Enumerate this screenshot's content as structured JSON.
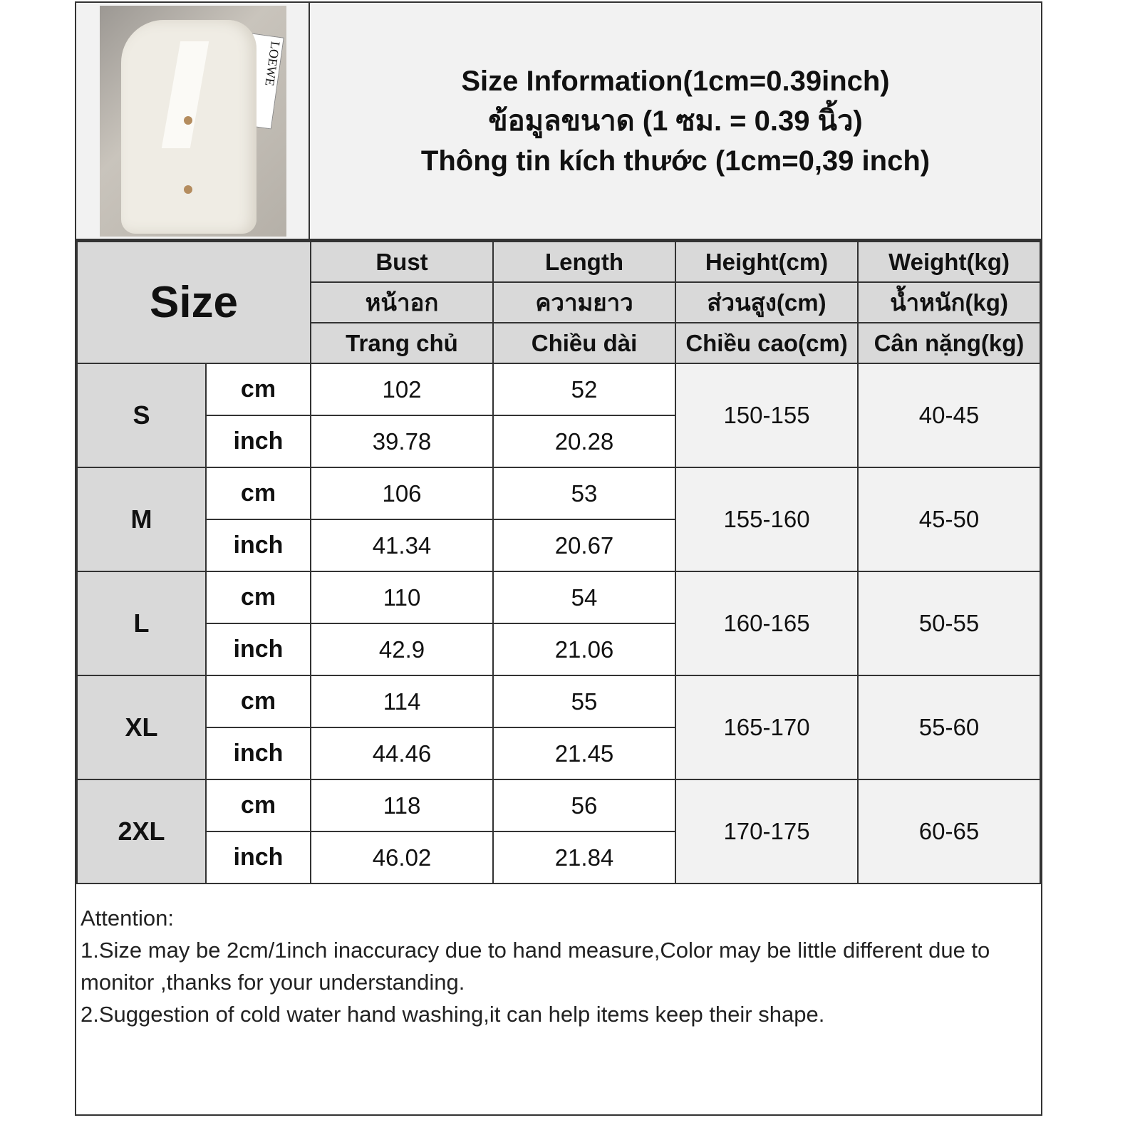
{
  "product_image": {
    "description_icon": "white-short-sleeve-blazer-photo",
    "box_logo": "LOEWE"
  },
  "title_lines": [
    "Size Information(1cm=0.39inch)",
    "ข้อมูลขนาด (1 ซม. = 0.39 นิ้ว)",
    "Thông tin kích thước (1cm=0,39 inch)"
  ],
  "size_header": "Size",
  "column_headers": [
    [
      "Bust",
      "หน้าอก",
      "Trang chủ"
    ],
    [
      "Length",
      "ความยาว",
      "Chiều dài"
    ],
    [
      "Height(cm)",
      "ส่วนสูง(cm)",
      "Chiều cao(cm)"
    ],
    [
      "Weight(kg)",
      "น้ำหนัก(kg)",
      "Cân nặng(kg)"
    ]
  ],
  "units": [
    "cm",
    "inch"
  ],
  "sizes": [
    {
      "size": "S",
      "bust_cm": "102",
      "length_cm": "52",
      "bust_inch": "39.78",
      "length_inch": "20.28",
      "height": "150-155",
      "weight": "40-45"
    },
    {
      "size": "M",
      "bust_cm": "106",
      "length_cm": "53",
      "bust_inch": "41.34",
      "length_inch": "20.67",
      "height": "155-160",
      "weight": "45-50"
    },
    {
      "size": "L",
      "bust_cm": "110",
      "length_cm": "54",
      "bust_inch": "42.9",
      "length_inch": "21.06",
      "height": "160-165",
      "weight": "50-55"
    },
    {
      "size": "XL",
      "bust_cm": "114",
      "length_cm": "55",
      "bust_inch": "44.46",
      "length_inch": "21.45",
      "height": "165-170",
      "weight": "55-60"
    },
    {
      "size": "2XL",
      "bust_cm": "118",
      "length_cm": "56",
      "bust_inch": "46.02",
      "length_inch": "21.84",
      "height": "170-175",
      "weight": "60-65"
    }
  ],
  "attention": {
    "heading": "Attention:",
    "items": [
      "1.Size may be 2cm/1inch inaccuracy due to hand measure,Color may be little different due to monitor ,thanks for your understanding.",
      "2.Suggestion of cold water hand washing,it can help items keep their shape."
    ]
  }
}
